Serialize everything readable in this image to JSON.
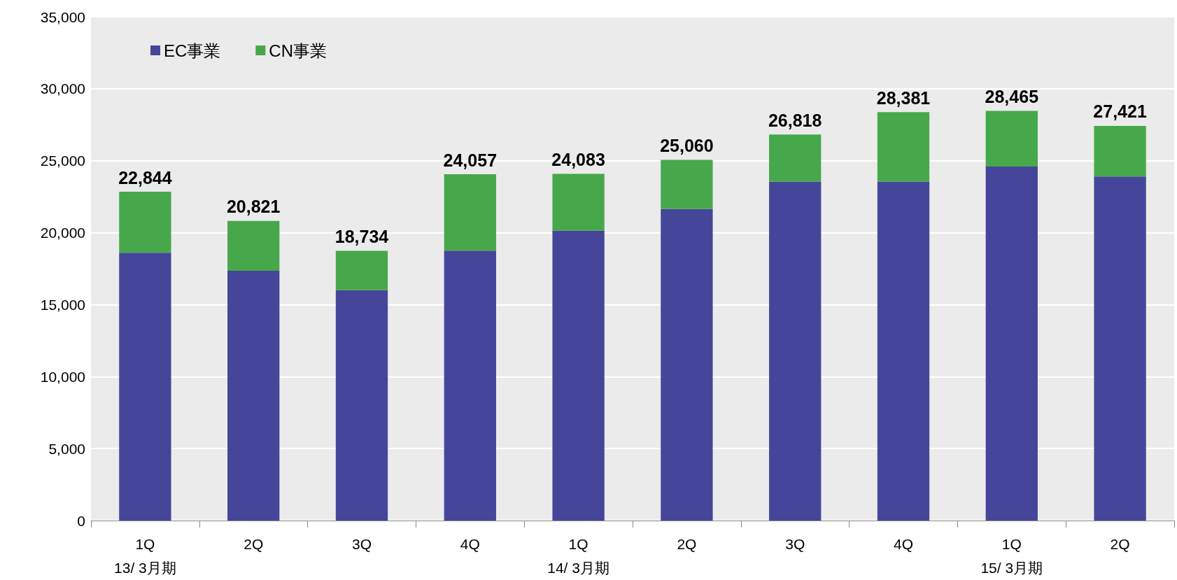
{
  "chart_data": {
    "type": "bar",
    "stacked": true,
    "categories": [
      "1Q\n13/ 3月期",
      "2Q",
      "3Q",
      "4Q",
      "1Q\n14/ 3月期",
      "2Q",
      "3Q",
      "4Q",
      "1Q\n15/ 3月期",
      "2Q"
    ],
    "series": [
      {
        "name": "EC事業",
        "color": "#45459a",
        "values": [
          18600,
          17350,
          16000,
          18750,
          20150,
          21650,
          23550,
          23550,
          24600,
          23900
        ]
      },
      {
        "name": "CN事業",
        "color": "#47a84b",
        "values": [
          4244,
          3471,
          2734,
          5307,
          3933,
          3410,
          3268,
          4831,
          3865,
          3521
        ]
      }
    ],
    "totals": [
      "22,844",
      "20,821",
      "18,734",
      "24,057",
      "24,083",
      "25,060",
      "26,818",
      "28,381",
      "28,465",
      "27,421"
    ],
    "ylim": [
      0,
      35000
    ],
    "yticks": [
      0,
      {
        "value": 5000,
        "label": "5,000"
      },
      {
        "value": 10000,
        "label": "10,000"
      },
      {
        "value": 15000,
        "label": "15,000"
      },
      {
        "value": 20000,
        "label": "20,000"
      },
      {
        "value": 25000,
        "label": "25,000"
      },
      {
        "value": 30000,
        "label": "30,000"
      },
      {
        "value": 35000,
        "label": "35,000"
      }
    ],
    "grid": "y",
    "legend": "top left"
  }
}
